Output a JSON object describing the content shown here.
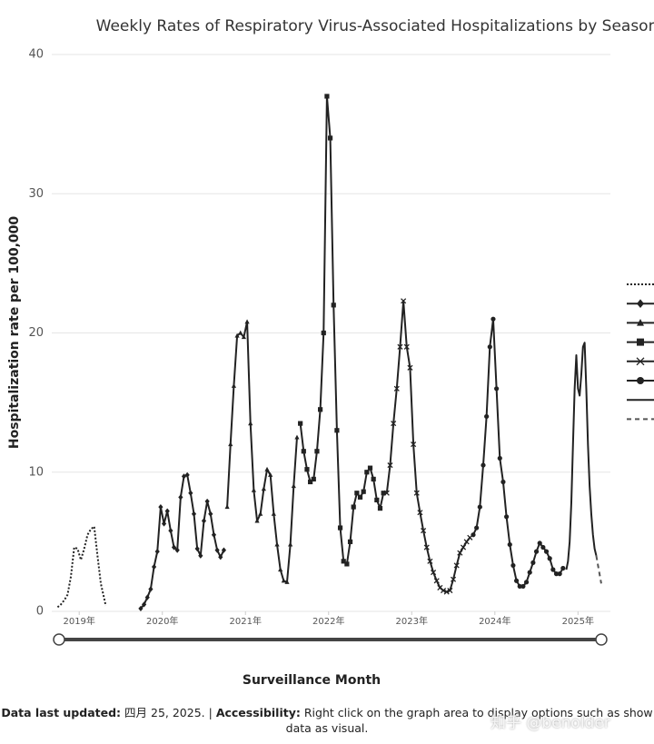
{
  "chart_data": {
    "type": "line",
    "title": "Weekly Rates of Respiratory Virus-Associated Hospitalizations by Season",
    "ylabel": "Hospitalization rate per 100,000",
    "xlabel": "Surveillance Month",
    "xlim": [
      2018.67,
      2025.39
    ],
    "ylim": [
      0,
      40
    ],
    "xticks": [
      {
        "value": 2019,
        "label": "2019年"
      },
      {
        "value": 2020,
        "label": "2020年"
      },
      {
        "value": 2021,
        "label": "2021年"
      },
      {
        "value": 2022,
        "label": "2022年"
      },
      {
        "value": 2023,
        "label": "2023年"
      },
      {
        "value": 2024,
        "label": "2024年"
      },
      {
        "value": 2025,
        "label": "2025年"
      }
    ],
    "yticks": [
      0,
      10,
      20,
      30,
      40
    ],
    "grid": true,
    "legend": "right",
    "series": [
      {
        "color": "#222222",
        "marker": "none",
        "dash": "dotted",
        "x": [
          2018.74,
          2018.78,
          2018.82,
          2018.86,
          2018.9,
          2018.94,
          2018.98,
          2019.02,
          2019.06,
          2019.1,
          2019.14,
          2019.18,
          2019.22,
          2019.26,
          2019.32
        ],
        "values": [
          0.3,
          0.5,
          0.8,
          1.2,
          2.5,
          4.6,
          4.5,
          3.7,
          4.5,
          5.5,
          5.9,
          6.1,
          4.0,
          2.0,
          0.4
        ]
      },
      {
        "color": "#222222",
        "marker": "diamond",
        "dash": "solid",
        "x": [
          2019.74,
          2019.78,
          2019.82,
          2019.86,
          2019.9,
          2019.94,
          2019.98,
          2020.02,
          2020.06,
          2020.1,
          2020.14,
          2020.18,
          2020.22,
          2020.26,
          2020.3,
          2020.34,
          2020.38,
          2020.42,
          2020.46,
          2020.5,
          2020.54,
          2020.58,
          2020.62,
          2020.66,
          2020.7,
          2020.74
        ],
        "values": [
          0.2,
          0.5,
          1.0,
          1.6,
          3.2,
          4.3,
          7.5,
          6.3,
          7.2,
          5.8,
          4.6,
          4.4,
          8.2,
          9.7,
          9.8,
          8.5,
          7.0,
          4.5,
          4.0,
          6.5,
          7.9,
          7.0,
          5.5,
          4.4,
          3.9,
          4.4
        ]
      },
      {
        "color": "#222222",
        "marker": "triangle",
        "dash": "solid",
        "x": [
          2020.78,
          2020.82,
          2020.86,
          2020.9,
          2020.94,
          2020.98,
          2021.02,
          2021.06,
          2021.1,
          2021.14,
          2021.18,
          2021.22,
          2021.26,
          2021.3,
          2021.34,
          2021.38,
          2021.42,
          2021.46,
          2021.5,
          2021.54,
          2021.58,
          2021.62
        ],
        "values": [
          7.5,
          12,
          16.2,
          19.8,
          20,
          19.7,
          20.8,
          13.5,
          8.7,
          6.5,
          7,
          8.8,
          10.2,
          9.8,
          7,
          4.8,
          3,
          2.2,
          2.1,
          4.8,
          9,
          12.5
        ]
      },
      {
        "color": "#222222",
        "marker": "square",
        "dash": "solid",
        "x": [
          2021.66,
          2021.7,
          2021.74,
          2021.78,
          2021.82,
          2021.86,
          2021.9,
          2021.94,
          2021.98,
          2022.02,
          2022.06,
          2022.1,
          2022.14,
          2022.18,
          2022.22,
          2022.26,
          2022.3,
          2022.34,
          2022.38,
          2022.42,
          2022.46,
          2022.5,
          2022.54,
          2022.58,
          2022.62,
          2022.66
        ],
        "values": [
          13.5,
          11.5,
          10.2,
          9.3,
          9.5,
          11.5,
          14.5,
          20,
          37,
          34,
          22,
          13,
          6,
          3.6,
          3.4,
          5,
          7.5,
          8.5,
          8.2,
          8.6,
          10,
          10.3,
          9.5,
          8,
          7.4,
          8.5
        ]
      },
      {
        "color": "#222222",
        "marker": "x",
        "dash": "solid",
        "x": [
          2022.7,
          2022.74,
          2022.78,
          2022.82,
          2022.86,
          2022.9,
          2022.94,
          2022.98,
          2023.02,
          2023.06,
          2023.1,
          2023.14,
          2023.18,
          2023.22,
          2023.26,
          2023.3,
          2023.34,
          2023.38,
          2023.42,
          2023.46,
          2023.5,
          2023.54,
          2023.58,
          2023.62,
          2023.66,
          2023.7
        ],
        "values": [
          8.5,
          10.5,
          13.5,
          16,
          19,
          22.3,
          19,
          17.5,
          12,
          8.5,
          7.1,
          5.8,
          4.6,
          3.6,
          2.8,
          2.2,
          1.7,
          1.5,
          1.4,
          1.5,
          2.3,
          3.3,
          4.2,
          4.6,
          5,
          5.3
        ]
      },
      {
        "color": "#222222",
        "marker": "circle",
        "dash": "solid",
        "x": [
          2023.74,
          2023.78,
          2023.82,
          2023.86,
          2023.9,
          2023.94,
          2023.98,
          2024.02,
          2024.06,
          2024.1,
          2024.14,
          2024.18,
          2024.22,
          2024.26,
          2024.3,
          2024.34,
          2024.38,
          2024.42,
          2024.46,
          2024.5,
          2024.54,
          2024.58,
          2024.62,
          2024.66,
          2024.7,
          2024.74,
          2024.78,
          2024.82
        ],
        "values": [
          5.5,
          6,
          7.5,
          10.5,
          14,
          19,
          21,
          16,
          11,
          9.3,
          6.8,
          4.8,
          3.3,
          2.2,
          1.8,
          1.8,
          2.1,
          2.8,
          3.5,
          4.3,
          4.9,
          4.6,
          4.3,
          3.8,
          3,
          2.7,
          2.7,
          3.1
        ]
      },
      {
        "color": "#222222",
        "marker": "none",
        "dash": "solid",
        "x": [
          2024.86,
          2024.88,
          2024.9,
          2024.92,
          2024.94,
          2024.96,
          2024.98,
          2025.0,
          2025.02,
          2025.04,
          2025.06,
          2025.08,
          2025.1,
          2025.12,
          2025.14,
          2025.16,
          2025.18,
          2025.2,
          2025.22
        ],
        "values": [
          3,
          3.6,
          5,
          7.8,
          12,
          16,
          18.4,
          16,
          15.5,
          17,
          19,
          19.3,
          16,
          12,
          9,
          7,
          5.5,
          4.5,
          4
        ]
      },
      {
        "color": "#555555",
        "marker": "none",
        "dash": "dashed",
        "x": [
          2025.22,
          2025.25,
          2025.28
        ],
        "values": [
          4,
          3,
          2
        ]
      }
    ],
    "footer": {
      "updated_label": "Data last updated:",
      "updated_text": "四月 25, 2025. |",
      "access_label": "Accessibility:",
      "access_text": "Right click on the graph area to display options such as show data as visual."
    },
    "watermark": "知乎 @benolder"
  }
}
